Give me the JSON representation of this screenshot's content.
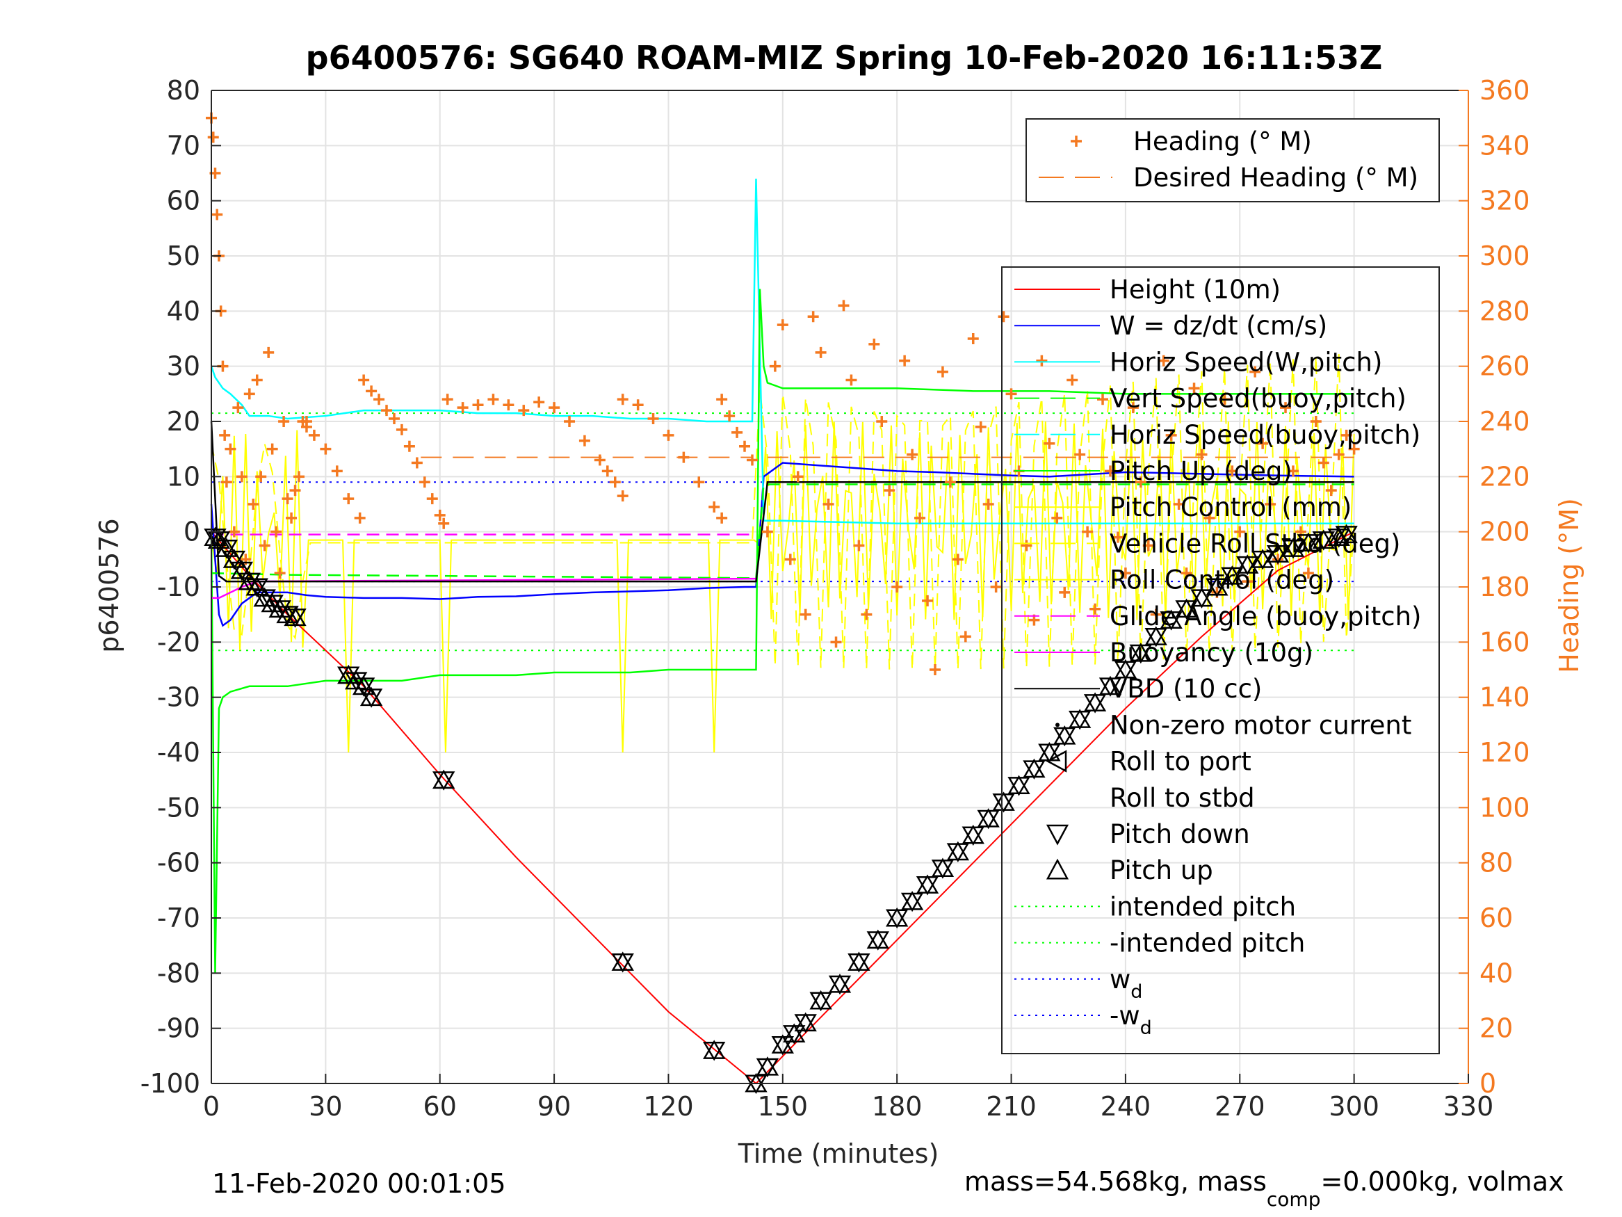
{
  "chart_data": {
    "type": "line",
    "title": "p6400576: SG640 ROAM-MIZ Spring 10-Feb-2020 16:11:53Z",
    "xlabel": "Time (minutes)",
    "ylabel_left": "p6400576",
    "ylabel_right": "Heading (°M)",
    "xlim": [
      0,
      330
    ],
    "ylim_left": [
      -100,
      80
    ],
    "ylim_right": [
      0,
      360
    ],
    "x_ticks": [
      "0",
      "30",
      "60",
      "90",
      "120",
      "150",
      "180",
      "210",
      "240",
      "270",
      "300",
      "330"
    ],
    "y_ticks_left": [
      "80",
      "70",
      "60",
      "50",
      "40",
      "30",
      "20",
      "10",
      "0",
      "-10",
      "-20",
      "-30",
      "-40",
      "-50",
      "-60",
      "-70",
      "-80",
      "-90",
      "-100"
    ],
    "y_ticks_right": [
      "360",
      "340",
      "320",
      "300",
      "280",
      "260",
      "240",
      "220",
      "200",
      "180",
      "160",
      "140",
      "120",
      "100",
      "80",
      "60",
      "40",
      "20",
      "0"
    ],
    "grid": true,
    "footer_left": "11-Feb-2020 00:01:05",
    "footer_right": {
      "prefix": "mass=54.568kg, mass",
      "sub": "comp",
      "suffix": "=0.000kg, volmax"
    },
    "colors": {
      "heading": "#f47920",
      "height": "#ff0000",
      "w": "#0000ff",
      "horiz": "#00ffff",
      "vert": "#00ff00",
      "pitch": "#ffff00",
      "glide": "#ff00ff",
      "vbd": "#000000"
    },
    "legend_top": [
      {
        "label": "Heading (° M)",
        "style": "plus",
        "color": "#f47920"
      },
      {
        "label": "Desired Heading (° M)",
        "style": "dashed",
        "color": "#f47920"
      }
    ],
    "legend_main": [
      {
        "label": "Height (10m)",
        "style": "solid",
        "color": "#ff0000"
      },
      {
        "label": "W = dz/dt (cm/s)",
        "style": "solid",
        "color": "#0000ff"
      },
      {
        "label": "Horiz Speed(W,pitch)",
        "style": "solid",
        "color": "#00ffff"
      },
      {
        "label": "Vert Speed(buoy,pitch)",
        "style": "dashed",
        "color": "#00ff00"
      },
      {
        "label": "Horiz Speed(buoy,pitch)",
        "style": "dashed",
        "color": "#00ffff"
      },
      {
        "label": "Pitch Up (deg)",
        "style": "solid",
        "color": "#00ff00"
      },
      {
        "label": "Pitch Control (mm)",
        "style": "solid",
        "color": "#ffff00"
      },
      {
        "label": "Vehicle Roll Stbd (deg)",
        "style": "dashed",
        "color": "#ffff00"
      },
      {
        "label": "Roll Control (deg)",
        "style": "solid",
        "color": "#ffff00"
      },
      {
        "label": "Glide Angle (buoy,pitch)",
        "style": "dashed",
        "color": "#ff00ff"
      },
      {
        "label": "Buoyancy (10g)",
        "style": "solid",
        "color": "#ff00ff"
      },
      {
        "label": "VBD (10 cc)",
        "style": "solid",
        "color": "#000000"
      },
      {
        "label": "Non-zero motor current",
        "style": "dot",
        "color": "#000000"
      },
      {
        "label": "Roll to port",
        "style": "triangle-left",
        "color": "#000000"
      },
      {
        "label": "Roll to stbd",
        "style": "none",
        "color": "#000000"
      },
      {
        "label": "Pitch down",
        "style": "triangle-down",
        "color": "#000000"
      },
      {
        "label": "Pitch up",
        "style": "triangle-up",
        "color": "#000000"
      },
      {
        "label": "intended pitch",
        "style": "dotted",
        "color": "#00ff00"
      },
      {
        "label": "-intended pitch",
        "style": "dotted",
        "color": "#00ff00"
      },
      {
        "label": "w",
        "sub": "d",
        "style": "dotted",
        "color": "#0000ff"
      },
      {
        "label": "-w",
        "sub": "d",
        "style": "dotted",
        "color": "#0000ff"
      }
    ],
    "series": [
      {
        "name": "Height (10m)",
        "color": "#ff0000",
        "axis": "left",
        "x": [
          0,
          10,
          20,
          40,
          60,
          80,
          100,
          120,
          143,
          160,
          180,
          200,
          220,
          240,
          260,
          280,
          300
        ],
        "y": [
          0,
          -8,
          -15,
          -28,
          -44,
          -59,
          -73,
          -87,
          -100,
          -88,
          -74,
          -60,
          -46,
          -32,
          -19,
          -7,
          0
        ]
      },
      {
        "name": "W = dz/dt (cm/s)",
        "color": "#0000ff",
        "axis": "left",
        "x": [
          0,
          1,
          2,
          3,
          5,
          8,
          12,
          20,
          25,
          30,
          40,
          50,
          60,
          70,
          80,
          90,
          100,
          110,
          120,
          130,
          140,
          143,
          145,
          150,
          160,
          170,
          180,
          190,
          200,
          210,
          220,
          240,
          260,
          280,
          300
        ],
        "y": [
          5,
          -5,
          -15,
          -17,
          -16,
          -13,
          -11,
          -11,
          -11.5,
          -11.8,
          -12,
          -12,
          -12.2,
          -11.8,
          -11.7,
          -11.3,
          -11,
          -10.8,
          -10.6,
          -10.2,
          -10,
          -10,
          10,
          12.5,
          12,
          11.5,
          11,
          10.8,
          10.5,
          10.2,
          10,
          10.8,
          10.5,
          10.2,
          10
        ]
      },
      {
        "name": "Horiz Speed(W,pitch)",
        "color": "#00ffff",
        "axis": "left",
        "x": [
          0,
          1,
          2,
          3,
          5,
          8,
          10,
          15,
          20,
          30,
          40,
          50,
          60,
          70,
          80,
          90,
          100,
          110,
          120,
          130,
          140,
          142,
          143,
          145,
          150,
          180,
          210,
          240,
          270,
          300
        ],
        "y": [
          30,
          28,
          27,
          26,
          25,
          23,
          21,
          21,
          20.5,
          21,
          22,
          22,
          22,
          21.5,
          21.5,
          21,
          21,
          20.5,
          20.5,
          20,
          20,
          20,
          64,
          2,
          2,
          1.5,
          1.5,
          1.5,
          1.5,
          1.5
        ]
      },
      {
        "name": "Pitch Up (deg)",
        "color": "#00ff00",
        "axis": "left",
        "x": [
          0,
          1,
          2,
          3,
          5,
          10,
          20,
          30,
          40,
          50,
          60,
          70,
          80,
          90,
          100,
          110,
          120,
          130,
          140,
          143,
          144,
          145,
          146,
          150,
          160,
          180,
          200,
          220,
          240,
          260,
          280,
          300
        ],
        "y": [
          0,
          -80,
          -32,
          -30,
          -29,
          -28,
          -28,
          -27,
          -27,
          -27,
          -26,
          -26,
          -26,
          -25.5,
          -25.5,
          -25.5,
          -25,
          -25,
          -25,
          -25,
          44,
          30,
          27,
          26,
          26,
          26,
          25.5,
          25.5,
          25,
          25,
          25,
          25
        ]
      },
      {
        "name": "Vert Speed(buoy,pitch)",
        "color": "#00ff00",
        "axis": "left",
        "dashed": true,
        "x": [
          0,
          20,
          60,
          100,
          143,
          145,
          200,
          260,
          300
        ],
        "y": [
          -7.5,
          -7.8,
          -8,
          -8.2,
          -8.4,
          8.6,
          8.6,
          8.6,
          8.6
        ]
      },
      {
        "name": "Glide Angle (buoy,pitch)",
        "color": "#ff00ff",
        "axis": "left",
        "dashed": true,
        "x": [
          0,
          3,
          143
        ],
        "y": [
          0,
          -0.5,
          -0.5
        ]
      },
      {
        "name": "Buoyancy (10g)",
        "color": "#ff00ff",
        "axis": "left",
        "x": [
          0,
          2,
          8,
          12,
          143
        ],
        "y": [
          -12,
          -12,
          -10,
          -9,
          -8.5
        ]
      },
      {
        "name": "VBD (10 cc)",
        "color": "#000000",
        "axis": "left",
        "x": [
          0,
          2,
          4,
          143,
          146,
          300
        ],
        "y": [
          20,
          -8,
          -9,
          -9,
          9,
          9
        ]
      }
    ],
    "intended_pitch": 21.5,
    "w_d": 9,
    "heading_sets": [
      {
        "x": [
          0,
          0.5,
          1,
          1.5,
          2,
          2.5,
          3,
          3.5,
          4,
          5,
          6,
          7,
          8,
          9,
          10,
          11,
          12,
          13,
          14,
          15,
          16,
          17,
          18,
          19,
          20,
          21,
          22,
          23,
          24,
          25
        ],
        "y": [
          350,
          343,
          330,
          315,
          300,
          280,
          260,
          235,
          218,
          230,
          200,
          245,
          220,
          190,
          250,
          210,
          255,
          220,
          195,
          265,
          230,
          200,
          185,
          240,
          212,
          205,
          215,
          220,
          240,
          238
        ]
      },
      {
        "x": [
          25,
          27,
          30,
          33,
          36,
          39
        ],
        "y": [
          240,
          235,
          230,
          222,
          212,
          205
        ]
      },
      {
        "x": [
          40,
          42,
          44,
          46,
          48,
          50,
          52,
          54,
          56,
          58,
          60,
          61
        ],
        "y": [
          255,
          251,
          248,
          244,
          241,
          237,
          231,
          225,
          218,
          212,
          206,
          203
        ]
      },
      {
        "x": [
          62,
          66,
          70,
          74,
          78,
          82,
          86,
          90,
          94,
          98,
          102,
          104,
          106,
          108
        ],
        "y": [
          248,
          245,
          246,
          248,
          246,
          244,
          247,
          245,
          240,
          233,
          226,
          222,
          218,
          213
        ]
      },
      {
        "x": [
          108,
          112,
          116,
          120,
          124,
          128,
          132,
          134
        ],
        "y": [
          248,
          246,
          241,
          235,
          227,
          218,
          209,
          205
        ]
      },
      {
        "x": [
          134,
          136,
          138,
          140,
          142
        ],
        "y": [
          248,
          242,
          236,
          231,
          226
        ]
      },
      {
        "x": [
          146,
          148,
          150,
          152,
          154,
          156,
          158,
          160,
          162,
          164,
          166,
          168,
          170,
          172,
          174,
          176,
          178,
          180,
          182,
          184,
          186,
          188,
          190,
          192,
          194,
          196,
          198,
          200,
          202,
          204,
          206,
          208,
          210,
          212,
          214,
          216,
          218,
          220,
          222,
          224,
          226,
          228,
          230,
          232,
          234,
          236,
          238,
          240,
          242,
          244,
          246,
          248,
          250,
          252,
          254,
          256,
          258,
          260,
          262,
          264,
          266,
          268,
          270,
          272,
          274,
          276,
          278,
          280,
          282,
          284,
          286,
          288,
          290,
          292,
          294,
          296,
          298,
          300
        ],
        "y": [
          200,
          260,
          275,
          190,
          220,
          170,
          278,
          265,
          210,
          160,
          282,
          255,
          195,
          170,
          268,
          240,
          215,
          180,
          262,
          228,
          205,
          175,
          150,
          258,
          218,
          190,
          162,
          270,
          238,
          210,
          180,
          278,
          250,
          222,
          195,
          168,
          262,
          232,
          205,
          178,
          255,
          228,
          200,
          172,
          248,
          222,
          198,
          185,
          245,
          218,
          195,
          170,
          262,
          235,
          210,
          185,
          252,
          228,
          205,
          178,
          248,
          222,
          200,
          182,
          258,
          232,
          210,
          190,
          245,
          222,
          200,
          185,
          240,
          225,
          215,
          228,
          235,
          230
        ]
      }
    ],
    "desired_heading": [
      {
        "x": [
          55,
          142
        ],
        "y": [
          227,
          227
        ]
      },
      {
        "x": [
          146,
          300
        ],
        "y": [
          227,
          227
        ]
      }
    ],
    "markers_down": {
      "x": [
        1,
        2,
        4,
        6,
        8,
        10,
        12,
        14,
        16,
        18,
        20,
        22,
        36,
        38,
        40,
        42,
        61,
        108,
        132,
        143,
        146,
        150,
        153,
        156,
        160,
        165,
        170,
        175,
        180,
        184,
        188,
        192,
        196,
        200,
        204,
        208,
        212,
        216,
        220,
        224,
        228,
        232,
        236,
        240,
        244,
        248,
        252,
        256,
        260,
        264,
        268,
        272,
        276,
        280,
        284,
        288,
        292,
        296,
        298
      ],
      "y": [
        -1,
        -1.5,
        -3,
        -5,
        -7,
        -9,
        -10,
        -12,
        -13,
        -14,
        -15,
        -15.5,
        -26,
        -27,
        -28,
        -30,
        -45,
        -78,
        -94,
        -100,
        -97,
        -93,
        -91,
        -89,
        -85,
        -82,
        -78,
        -74,
        -70,
        -67,
        -64,
        -61,
        -58,
        -55,
        -52,
        -49,
        -46,
        -43,
        -40,
        -37,
        -34,
        -31,
        -28,
        -25,
        -22,
        -19,
        -16,
        -14,
        -12,
        -10,
        -8,
        -6,
        -5,
        -4,
        -3,
        -2,
        -1.5,
        -1,
        -0.5
      ]
    }
  }
}
